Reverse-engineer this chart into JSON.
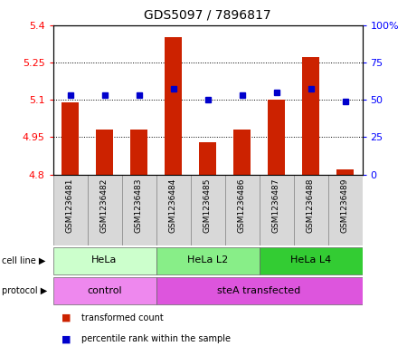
{
  "title": "GDS5097 / 7896817",
  "samples": [
    "GSM1236481",
    "GSM1236482",
    "GSM1236483",
    "GSM1236484",
    "GSM1236485",
    "GSM1236486",
    "GSM1236487",
    "GSM1236488",
    "GSM1236489"
  ],
  "red_values": [
    5.09,
    4.98,
    4.98,
    5.35,
    4.93,
    4.98,
    5.1,
    5.27,
    4.82
  ],
  "blue_values": [
    53,
    53,
    53,
    57,
    50,
    53,
    55,
    57,
    49
  ],
  "base_value": 4.8,
  "ylim_left": [
    4.8,
    5.4
  ],
  "ylim_right": [
    0,
    100
  ],
  "yticks_left": [
    4.8,
    4.95,
    5.1,
    5.25,
    5.4
  ],
  "ytick_labels_left": [
    "4.8",
    "4.95",
    "5.1",
    "5.25",
    "5.4"
  ],
  "yticks_right": [
    0,
    25,
    50,
    75,
    100
  ],
  "ytick_labels_right": [
    "0",
    "25",
    "50",
    "75",
    "100%"
  ],
  "hlines": [
    4.95,
    5.1,
    5.25
  ],
  "cell_line_groups": [
    {
      "label": "HeLa",
      "start": 0,
      "end": 3,
      "color": "#ccffcc"
    },
    {
      "label": "HeLa L2",
      "start": 3,
      "end": 6,
      "color": "#88ee88"
    },
    {
      "label": "HeLa L4",
      "start": 6,
      "end": 9,
      "color": "#33cc33"
    }
  ],
  "protocol_groups": [
    {
      "label": "control",
      "start": 0,
      "end": 3,
      "color": "#ee88ee"
    },
    {
      "label": "steA transfected",
      "start": 3,
      "end": 9,
      "color": "#dd55dd"
    }
  ],
  "bar_color": "#cc2200",
  "dot_color": "#0000cc",
  "legend_items": [
    {
      "color": "#cc2200",
      "label": "transformed count"
    },
    {
      "color": "#0000cc",
      "label": "percentile rank within the sample"
    }
  ],
  "cell_line_label": "cell line",
  "protocol_label": "protocol",
  "arrow": "▶"
}
